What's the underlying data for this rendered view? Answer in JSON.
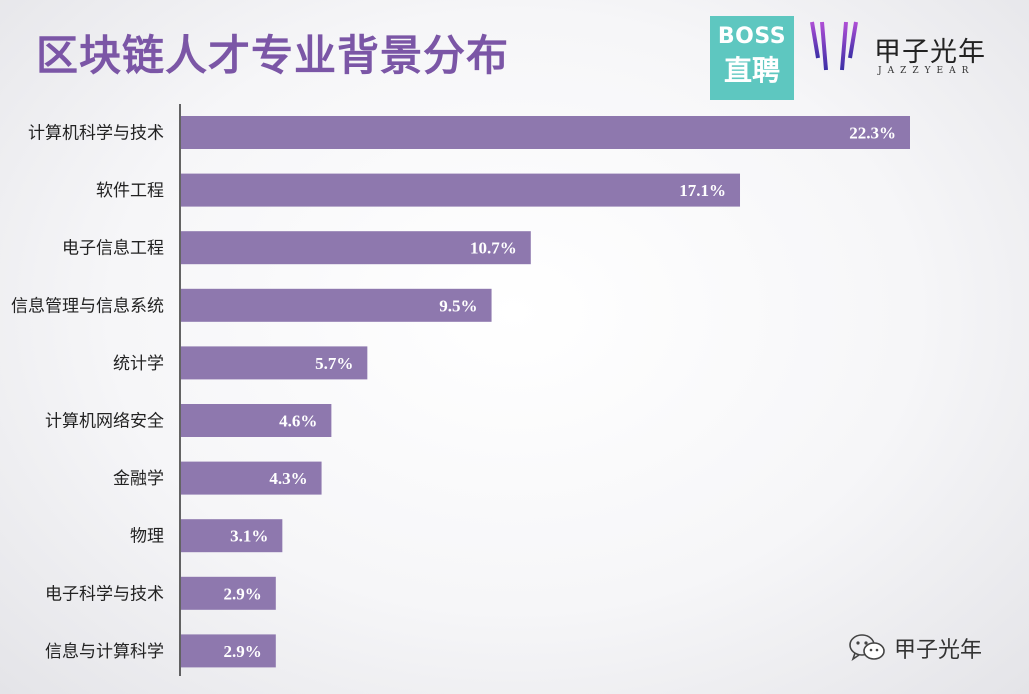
{
  "title": "区块链人才专业背景分布",
  "logos": {
    "boss": {
      "line1": "BOSS",
      "line2": "直聘",
      "color": "#5ec7c0"
    },
    "jazzyear": {
      "name": "甲子光年",
      "sub": "JAZZYEAR"
    }
  },
  "watermark": {
    "icon": "wechat-icon",
    "text": "甲子光年"
  },
  "colors": {
    "bar": "#8e78ae",
    "title": "#7b56a6",
    "axis": "#333333"
  },
  "chart_data": {
    "type": "bar",
    "orientation": "horizontal",
    "title": "区块链人才专业背景分布",
    "categories": [
      "计算机科学与技术",
      "软件工程",
      "电子信息工程",
      "信息管理与信息系统",
      "统计学",
      "计算机网络安全",
      "金融学",
      "物理",
      "电子科学与技术",
      "信息与计算科学"
    ],
    "values": [
      22.3,
      17.1,
      10.7,
      9.5,
      5.7,
      4.6,
      4.3,
      3.1,
      2.9,
      2.9
    ],
    "value_labels": [
      "22.3%",
      "17.1%",
      "10.7%",
      "9.5%",
      "5.7%",
      "4.6%",
      "4.3%",
      "3.1%",
      "2.9%",
      "2.9%"
    ],
    "unit": "%",
    "xlim": [
      0,
      22.3
    ],
    "grid": false,
    "legend": "none"
  }
}
